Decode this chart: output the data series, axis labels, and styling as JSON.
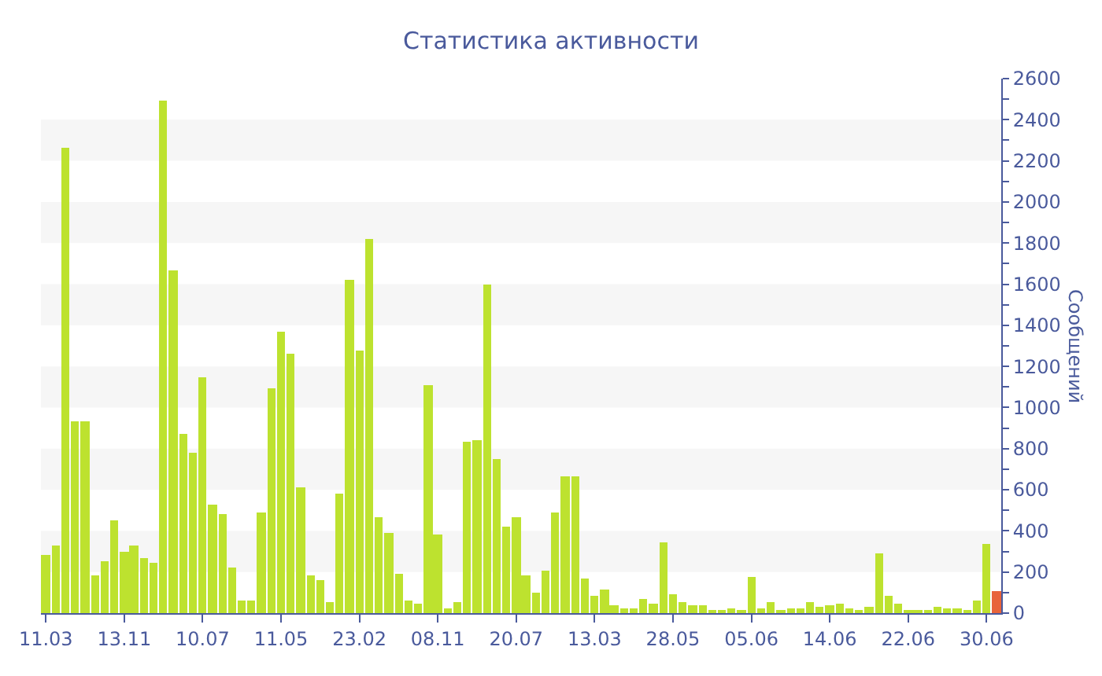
{
  "chart_data": {
    "type": "bar",
    "title": "Статистика активности",
    "ylabel": "Сообщений",
    "categories": [
      "11.03",
      null,
      null,
      null,
      null,
      null,
      null,
      null,
      "13.11",
      null,
      null,
      null,
      null,
      null,
      null,
      null,
      "10.07",
      null,
      null,
      null,
      null,
      null,
      null,
      null,
      "11.05",
      null,
      null,
      null,
      null,
      null,
      null,
      null,
      "23.02",
      null,
      null,
      null,
      null,
      null,
      null,
      null,
      "08.11",
      null,
      null,
      null,
      null,
      null,
      null,
      null,
      "20.07",
      null,
      null,
      null,
      null,
      null,
      null,
      null,
      "13.03",
      null,
      null,
      null,
      null,
      null,
      null,
      null,
      "28.05",
      null,
      null,
      null,
      null,
      null,
      null,
      null,
      "05.06",
      null,
      null,
      null,
      null,
      null,
      null,
      null,
      "14.06",
      null,
      null,
      null,
      null,
      null,
      null,
      null,
      "22.06",
      null,
      null,
      null,
      null,
      null,
      null,
      null,
      "30.06",
      null
    ],
    "values": [
      280,
      330,
      2260,
      935,
      935,
      185,
      255,
      450,
      295,
      330,
      265,
      245,
      2490,
      1670,
      875,
      780,
      1150,
      525,
      485,
      225,
      65,
      65,
      490,
      1090,
      1370,
      1260,
      610,
      180,
      160,
      50,
      580,
      1620,
      1280,
      1820,
      470,
      390,
      190,
      65,
      45,
      1110,
      380,
      20,
      50,
      830,
      845,
      1600,
      750,
      420,
      470,
      180,
      100,
      210,
      490,
      665,
      665,
      170,
      85,
      115,
      40,
      25,
      20,
      70,
      45,
      345,
      90,
      50,
      40,
      35,
      15,
      15,
      25,
      18,
      175,
      23,
      50,
      18,
      20,
      20,
      50,
      28,
      38,
      45,
      26,
      15,
      28,
      290,
      82,
      45,
      18,
      10,
      15,
      28,
      20,
      20,
      10,
      62,
      333,
      105
    ],
    "colors": [
      "#bde22f",
      "#bde22f",
      "#bde22f",
      "#bde22f",
      "#bde22f",
      "#bde22f",
      "#bde22f",
      "#bde22f",
      "#bde22f",
      "#bde22f",
      "#bde22f",
      "#bde22f",
      "#bde22f",
      "#bde22f",
      "#bde22f",
      "#bde22f",
      "#bde22f",
      "#bde22f",
      "#bde22f",
      "#bde22f",
      "#bde22f",
      "#bde22f",
      "#bde22f",
      "#bde22f",
      "#bde22f",
      "#bde22f",
      "#bde22f",
      "#bde22f",
      "#bde22f",
      "#bde22f",
      "#bde22f",
      "#bde22f",
      "#bde22f",
      "#bde22f",
      "#bde22f",
      "#bde22f",
      "#bde22f",
      "#bde22f",
      "#bde22f",
      "#bde22f",
      "#bde22f",
      "#bde22f",
      "#bde22f",
      "#bde22f",
      "#bde22f",
      "#bde22f",
      "#bde22f",
      "#bde22f",
      "#bde22f",
      "#bde22f",
      "#bde22f",
      "#bde22f",
      "#bde22f",
      "#bde22f",
      "#bde22f",
      "#bde22f",
      "#bde22f",
      "#bde22f",
      "#bde22f",
      "#bde22f",
      "#bde22f",
      "#bde22f",
      "#bde22f",
      "#bde22f",
      "#bde22f",
      "#bde22f",
      "#bde22f",
      "#bde22f",
      "#bde22f",
      "#bde22f",
      "#bde22f",
      "#bde22f",
      "#bde22f",
      "#bde22f",
      "#bde22f",
      "#bde22f",
      "#bde22f",
      "#bde22f",
      "#bde22f",
      "#bde22f",
      "#bde22f",
      "#bde22f",
      "#bde22f",
      "#bde22f",
      "#bde22f",
      "#bde22f",
      "#bde22f",
      "#bde22f",
      "#bde22f",
      "#bde22f",
      "#bde22f",
      "#bde22f",
      "#bde22f",
      "#bde22f",
      "#bde22f",
      "#bde22f",
      "#bde22f",
      "#e8643a"
    ],
    "ylim": [
      0,
      2600
    ],
    "yticks": [
      0,
      {
        "value": 100,
        "label": null
      },
      200,
      {
        "value": 300,
        "label": null
      },
      400,
      {
        "value": 500,
        "label": null
      },
      600,
      {
        "value": 700,
        "label": null
      },
      800,
      {
        "value": 900,
        "label": null
      },
      1000,
      {
        "value": 1100,
        "label": null
      },
      1200,
      {
        "value": 1300,
        "label": null
      },
      1400,
      {
        "value": 1500,
        "label": null
      },
      1600,
      {
        "value": 1700,
        "label": null
      },
      1800,
      {
        "value": 1900,
        "label": null
      },
      2000,
      {
        "value": 2100,
        "label": null
      },
      2200,
      {
        "value": 2300,
        "label": null
      },
      2400,
      {
        "value": 2500,
        "label": null
      },
      2600
    ],
    "bands": [
      {
        "axis": "y",
        "from": 200,
        "to": 400,
        "color": "#f6f6f6"
      },
      {
        "axis": "y",
        "from": 600,
        "to": 800,
        "color": "#f6f6f6"
      },
      {
        "axis": "y",
        "from": 1000,
        "to": 1200,
        "color": "#f6f6f6"
      },
      {
        "axis": "y",
        "from": 1400,
        "to": 1600,
        "color": "#f6f6f6"
      },
      {
        "axis": "y",
        "from": 1800,
        "to": 2000,
        "color": "#f6f6f6"
      },
      {
        "axis": "y",
        "from": 2200,
        "to": 2400,
        "color": "#f6f6f6"
      }
    ]
  }
}
